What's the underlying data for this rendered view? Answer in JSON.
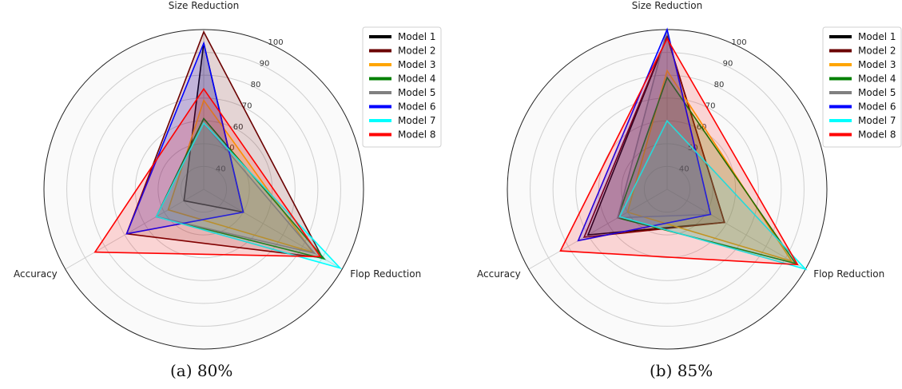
{
  "chart_data": [
    {
      "type": "radar",
      "caption": "(a) 80%",
      "axes": [
        "Size Reduction",
        "Flop Reduction",
        "Accuracy"
      ],
      "rlim": [
        30,
        100
      ],
      "ticks": [
        40,
        50,
        60,
        70,
        80,
        90,
        100
      ],
      "legend_position": "top-right",
      "series": [
        {
          "name": "Model 1",
          "color": "#000000",
          "values": [
            94,
            50,
            40
          ]
        },
        {
          "name": "Model 2",
          "color": "#6b0000",
          "values": [
            99,
            90,
            69
          ]
        },
        {
          "name": "Model 3",
          "color": "#ffa500",
          "values": [
            69,
            85,
            48
          ]
        },
        {
          "name": "Model 4",
          "color": "#008000",
          "values": [
            61,
            91,
            54
          ]
        },
        {
          "name": "Model 5",
          "color": "#808080",
          "values": [
            59,
            86,
            54
          ]
        },
        {
          "name": "Model 6",
          "color": "#0000ff",
          "values": [
            94,
            50,
            69
          ]
        },
        {
          "name": "Model 7",
          "color": "#00ffff",
          "values": [
            59,
            99,
            54
          ]
        },
        {
          "name": "Model 8",
          "color": "#ff0000",
          "values": [
            74,
            89,
            85
          ]
        }
      ]
    },
    {
      "type": "radar",
      "caption": "(b) 85%",
      "axes": [
        "Size Reduction",
        "Flop Reduction",
        "Accuracy"
      ],
      "rlim": [
        30,
        100
      ],
      "ticks": [
        40,
        50,
        60,
        70,
        80,
        90,
        100
      ],
      "legend_position": "top-right",
      "series": [
        {
          "name": "Model 1",
          "color": "#000000",
          "values": [
            97,
            59,
            70
          ]
        },
        {
          "name": "Model 2",
          "color": "#6b0000",
          "values": [
            97,
            59,
            72
          ]
        },
        {
          "name": "Model 3",
          "color": "#ffa500",
          "values": [
            82,
            93,
            50
          ]
        },
        {
          "name": "Model 4",
          "color": "#008000",
          "values": [
            79,
            95,
            55
          ]
        },
        {
          "name": "Model 5",
          "color": "#808080",
          "values": [
            100,
            52,
            55
          ]
        },
        {
          "name": "Model 6",
          "color": "#0000ff",
          "values": [
            100,
            52,
            75
          ]
        },
        {
          "name": "Model 7",
          "color": "#00ffff",
          "values": [
            60,
            100,
            54
          ]
        },
        {
          "name": "Model 8",
          "color": "#ff0000",
          "values": [
            96,
            96,
            84
          ]
        }
      ]
    }
  ]
}
